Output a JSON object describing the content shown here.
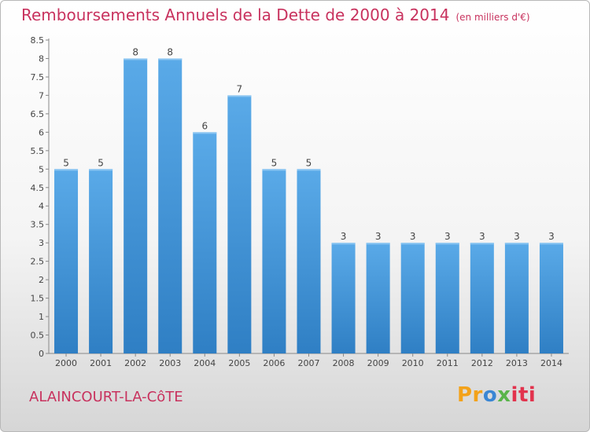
{
  "header": {
    "title": "Remboursements Annuels de la Dette de 2000 à 2014",
    "subtitle": "(en milliers d'€)"
  },
  "footer": {
    "city": "ALAINCOURT-LA-CôTE",
    "logo_parts": [
      "Pr",
      "o",
      "x",
      "iti"
    ]
  },
  "colors": {
    "bar_top": "#5aaae8",
    "bar_bottom": "#2f7fc4",
    "title": "#c8325e"
  },
  "chart_data": {
    "type": "bar",
    "title": "Remboursements Annuels de la Dette de 2000 à 2014",
    "xlabel": "",
    "ylabel": "",
    "categories": [
      "2000",
      "2001",
      "2002",
      "2003",
      "2004",
      "2005",
      "2006",
      "2007",
      "2008",
      "2009",
      "2010",
      "2011",
      "2012",
      "2013",
      "2014"
    ],
    "values": [
      5,
      5,
      8,
      8,
      6,
      7,
      5,
      5,
      3,
      3,
      3,
      3,
      3,
      3,
      3
    ],
    "ylim": [
      0,
      8.5
    ],
    "yticks": [
      "0",
      "0.5",
      "1",
      "1.5",
      "2",
      "2.5",
      "3",
      "3.5",
      "4",
      "4.5",
      "5",
      "5.5",
      "6",
      "6.5",
      "7",
      "7.5",
      "8",
      "8.5"
    ],
    "ytick_values": [
      0,
      0.5,
      1,
      1.5,
      2,
      2.5,
      3,
      3.5,
      4,
      4.5,
      5,
      5.5,
      6,
      6.5,
      7,
      7.5,
      8,
      8.5
    ],
    "grid": false
  }
}
